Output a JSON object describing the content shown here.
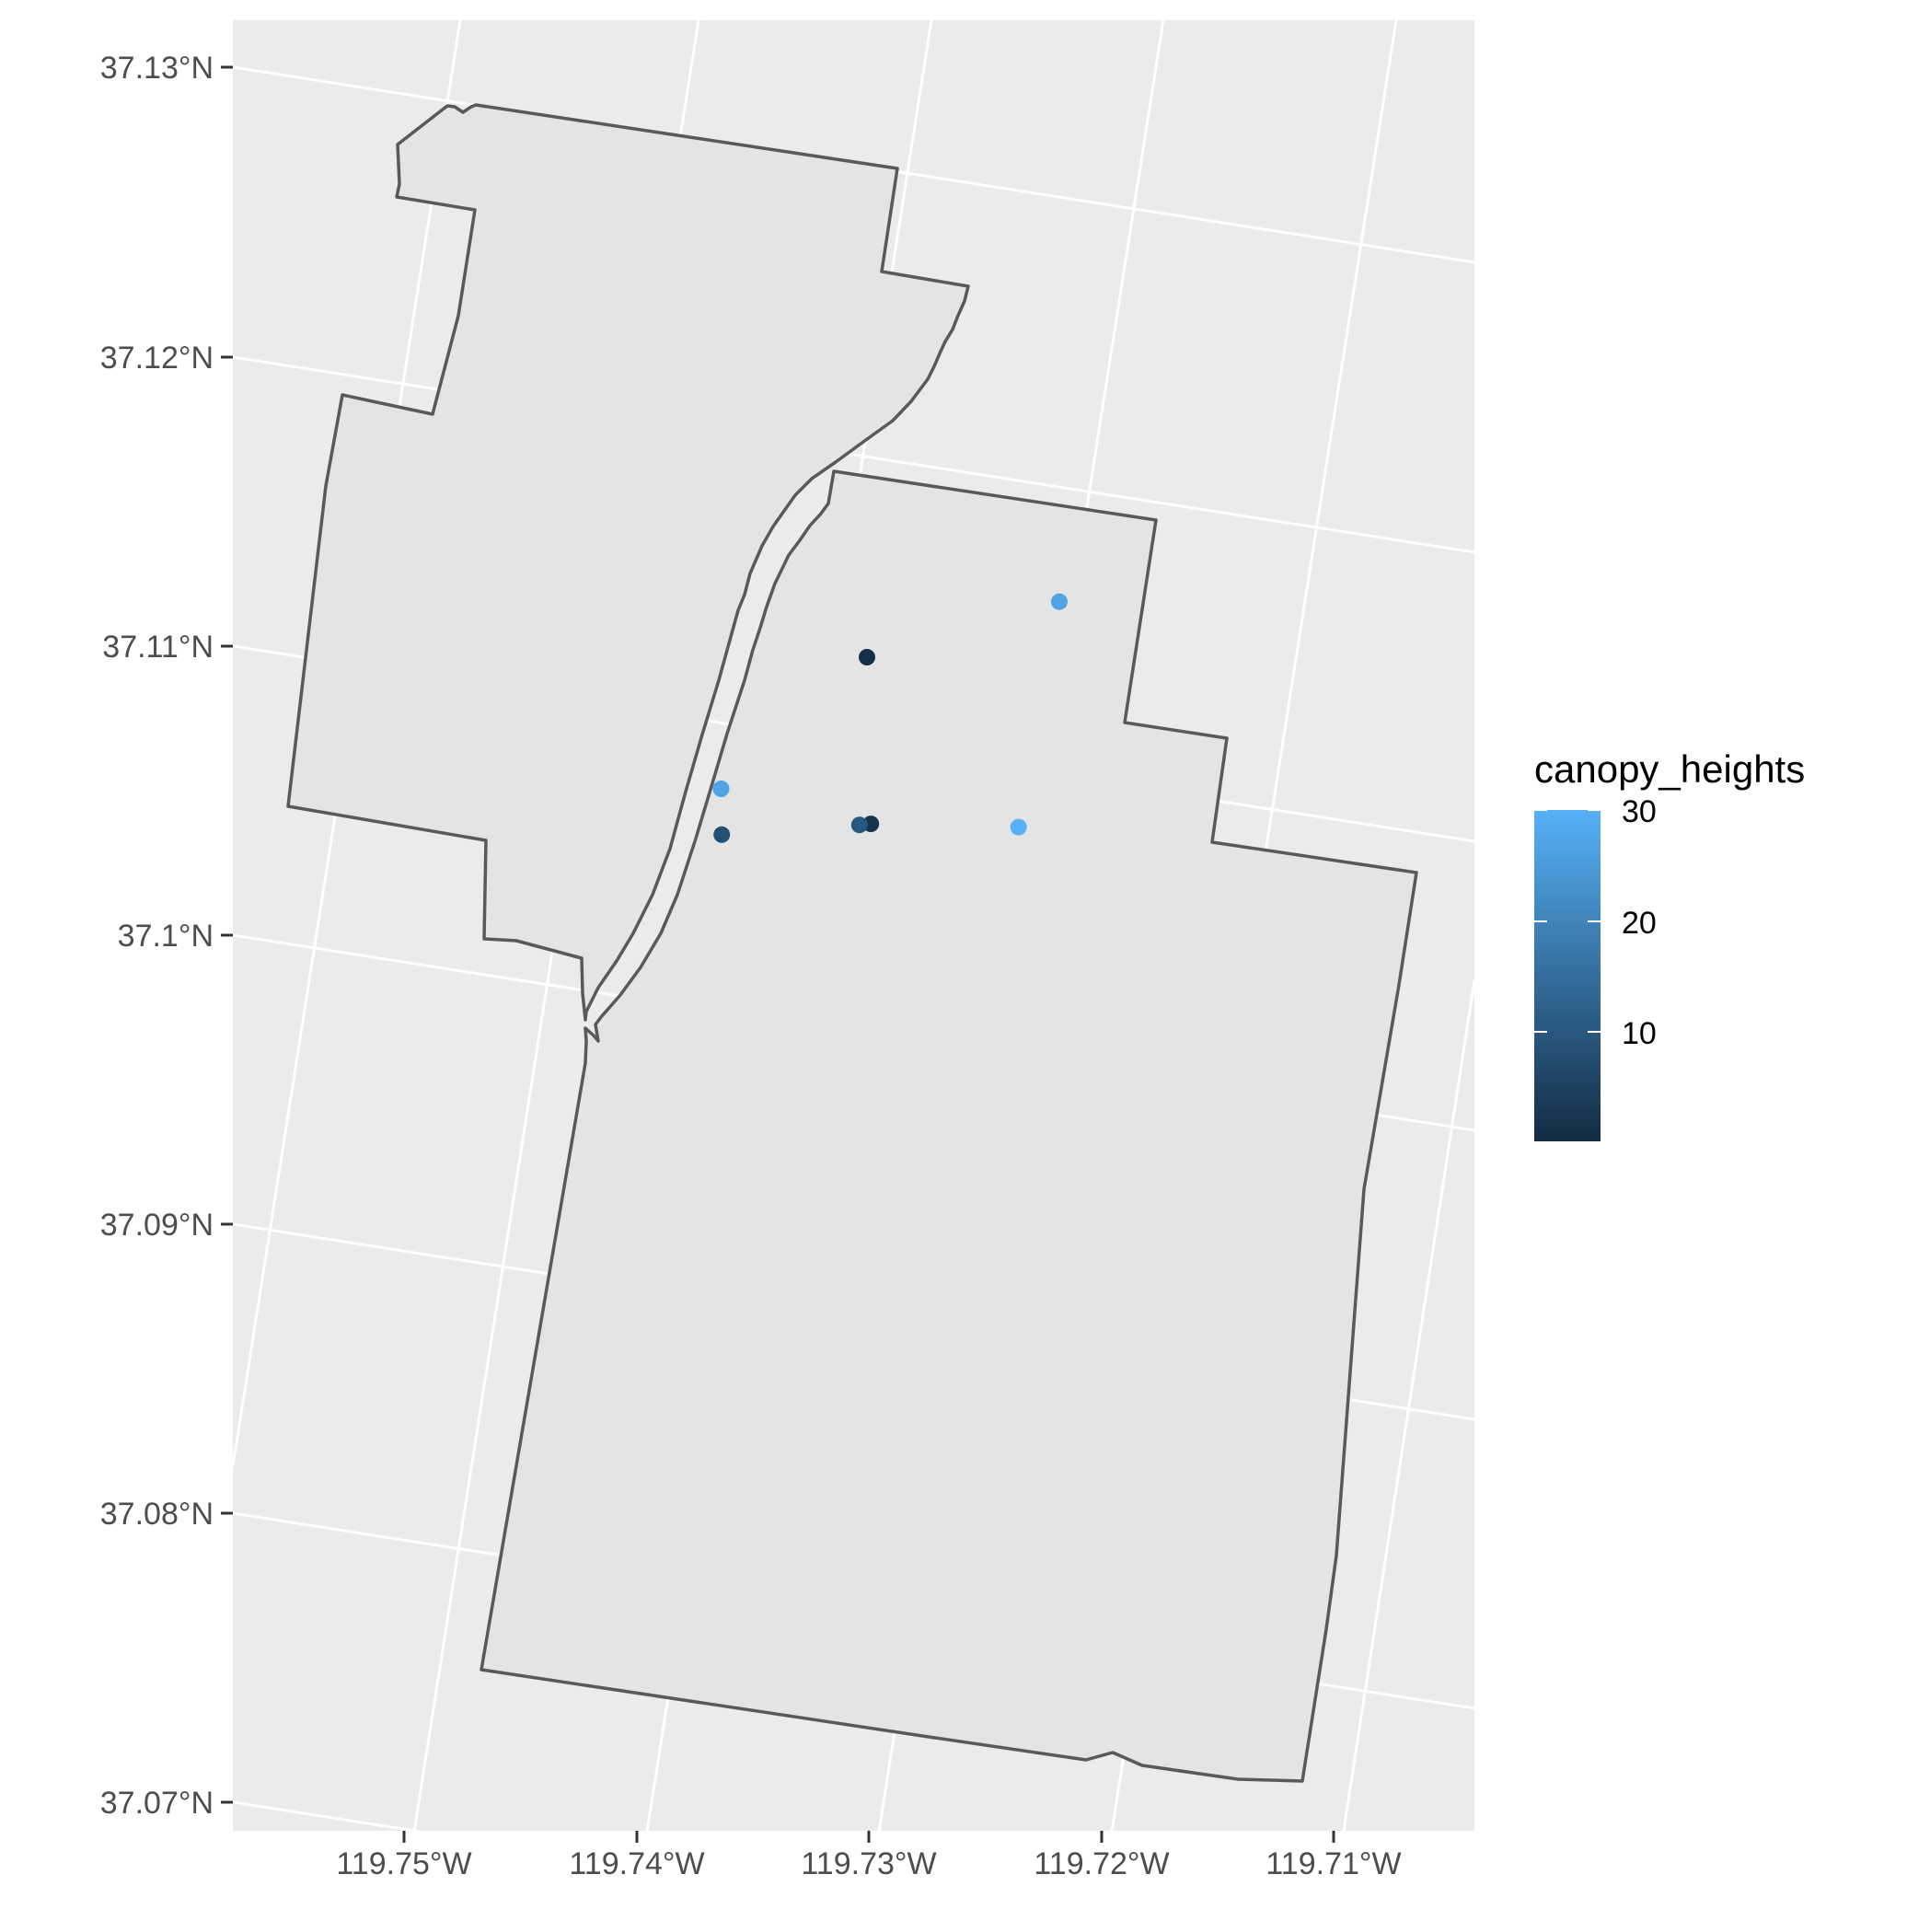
{
  "map": {
    "lat_axis_labels": [
      "37.13°N",
      "37.12°N",
      "37.11°N",
      "37.1°N",
      "37.09°N",
      "37.08°N",
      "37.07°N"
    ],
    "lon_axis_labels": [
      "119.75°W",
      "119.74°W",
      "119.73°W",
      "119.72°W",
      "119.71°W"
    ],
    "colors": {
      "panel_background": "#ebebeb",
      "graticule": "#ffffff",
      "polygon_fill": "#e4e4e4",
      "polygon_stroke": "#595959",
      "low": "#132b43",
      "high": "#56b1f7"
    },
    "points": [
      {
        "lon": -119.7208,
        "lat": 37.1127,
        "canopy_height": 27
      },
      {
        "lon": -119.7293,
        "lat": 37.1097,
        "canopy_height": 1
      },
      {
        "lon": -119.736,
        "lat": 37.1043,
        "canopy_height": 27
      },
      {
        "lon": -119.7232,
        "lat": 37.1046,
        "canopy_height": 30
      },
      {
        "lon": -119.7296,
        "lat": 37.1039,
        "canopy_height": 2
      },
      {
        "lon": -119.7301,
        "lat": 37.1038,
        "canopy_height": 10
      },
      {
        "lon": -119.7361,
        "lat": 37.1027,
        "canopy_height": 8
      }
    ],
    "legend": {
      "title": "canopy_heights",
      "labels": [
        "30",
        "20",
        "10"
      ],
      "min": 0,
      "max": 30
    }
  }
}
